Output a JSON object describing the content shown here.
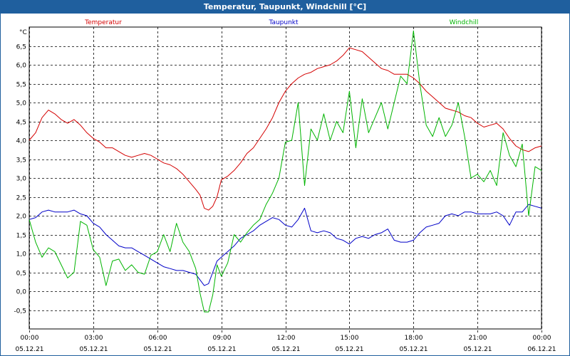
{
  "window": {
    "title": "Temperatur, Taupunkt, Windchill [°C]"
  },
  "colors": {
    "titlebar": "#1f5f9e",
    "grid": "#000000",
    "temperature": "#d40000",
    "dewpoint": "#0000c8",
    "windchill": "#00b400"
  },
  "chart_data": {
    "type": "line",
    "title": "Temperatur, Taupunkt, Windchill [°C]",
    "ylabel": "°C",
    "ylim": [
      -1.0,
      7.0
    ],
    "xlim": [
      0,
      24
    ],
    "grid": true,
    "legend_position": "top",
    "yticks": [
      -0.5,
      0.0,
      0.5,
      1.0,
      1.5,
      2.0,
      2.5,
      3.0,
      3.5,
      4.0,
      4.5,
      5.0,
      5.5,
      6.0,
      6.5
    ],
    "ytick_labels": [
      "-0,5",
      "0,0",
      "0,5",
      "1,0",
      "1,5",
      "2,0",
      "2,5",
      "3,0",
      "3,5",
      "4,0",
      "4,5",
      "5,0",
      "5,5",
      "6,0",
      "6,5"
    ],
    "xticks": [
      {
        "hour": 0,
        "time": "00:00",
        "date": "05.12.21"
      },
      {
        "hour": 3,
        "time": "03:00",
        "date": "05.12.21"
      },
      {
        "hour": 6,
        "time": "06:00",
        "date": "05.12.21"
      },
      {
        "hour": 9,
        "time": "09:00",
        "date": "05.12.21"
      },
      {
        "hour": 12,
        "time": "12:00",
        "date": "05.12.21"
      },
      {
        "hour": 15,
        "time": "15:00",
        "date": "05.12.21"
      },
      {
        "hour": 18,
        "time": "18:00",
        "date": "05.12.21"
      },
      {
        "hour": 21,
        "time": "21:00",
        "date": "05.12.21"
      },
      {
        "hour": 24,
        "time": "00:00",
        "date": "06.12.21"
      }
    ],
    "series": [
      {
        "name": "Temperatur",
        "color": "#d40000",
        "x": [
          0,
          0.3,
          0.6,
          0.9,
          1.2,
          1.5,
          1.8,
          2.1,
          2.4,
          2.7,
          3.0,
          3.3,
          3.6,
          3.9,
          4.2,
          4.5,
          4.8,
          5.1,
          5.4,
          5.7,
          6.0,
          6.3,
          6.6,
          6.9,
          7.2,
          7.5,
          7.8,
          8.0,
          8.2,
          8.4,
          8.6,
          8.8,
          9.0,
          9.3,
          9.6,
          9.9,
          10.2,
          10.5,
          10.8,
          11.1,
          11.4,
          11.7,
          12.0,
          12.3,
          12.6,
          12.9,
          13.2,
          13.5,
          13.8,
          14.1,
          14.4,
          14.7,
          15.0,
          15.3,
          15.6,
          15.9,
          16.2,
          16.5,
          16.8,
          17.1,
          17.4,
          17.7,
          18.0,
          18.3,
          18.6,
          18.9,
          19.2,
          19.5,
          19.8,
          20.1,
          20.4,
          20.7,
          21.0,
          21.3,
          21.6,
          21.9,
          22.2,
          22.5,
          22.8,
          23.1,
          23.4,
          23.7,
          24.0
        ],
        "values": [
          4.0,
          4.2,
          4.6,
          4.8,
          4.7,
          4.55,
          4.45,
          4.55,
          4.4,
          4.2,
          4.05,
          3.95,
          3.8,
          3.8,
          3.7,
          3.6,
          3.55,
          3.6,
          3.65,
          3.6,
          3.5,
          3.4,
          3.35,
          3.25,
          3.1,
          2.9,
          2.7,
          2.55,
          2.2,
          2.15,
          2.25,
          2.5,
          2.95,
          3.05,
          3.2,
          3.4,
          3.65,
          3.8,
          4.05,
          4.3,
          4.6,
          5.0,
          5.3,
          5.5,
          5.65,
          5.75,
          5.8,
          5.9,
          5.95,
          6.0,
          6.1,
          6.25,
          6.45,
          6.4,
          6.35,
          6.2,
          6.05,
          5.9,
          5.85,
          5.75,
          5.75,
          5.75,
          5.65,
          5.5,
          5.3,
          5.15,
          5.0,
          4.85,
          4.8,
          4.75,
          4.65,
          4.6,
          4.45,
          4.35,
          4.4,
          4.45,
          4.3,
          4.05,
          3.85,
          3.75,
          3.7,
          3.8,
          3.85
        ]
      },
      {
        "name": "Taupunkt",
        "color": "#0000c8",
        "x": [
          0,
          0.3,
          0.6,
          0.9,
          1.2,
          1.5,
          1.8,
          2.1,
          2.4,
          2.7,
          3.0,
          3.3,
          3.6,
          3.9,
          4.2,
          4.5,
          4.8,
          5.1,
          5.4,
          5.7,
          6.0,
          6.3,
          6.6,
          6.9,
          7.2,
          7.5,
          7.8,
          8.0,
          8.2,
          8.4,
          8.6,
          8.8,
          9.0,
          9.3,
          9.6,
          9.9,
          10.2,
          10.5,
          10.8,
          11.1,
          11.4,
          11.7,
          12.0,
          12.3,
          12.6,
          12.9,
          13.2,
          13.5,
          13.8,
          14.1,
          14.4,
          14.7,
          15.0,
          15.3,
          15.6,
          15.9,
          16.2,
          16.5,
          16.8,
          17.1,
          17.4,
          17.7,
          18.0,
          18.3,
          18.6,
          18.9,
          19.2,
          19.5,
          19.8,
          20.1,
          20.4,
          20.7,
          21.0,
          21.3,
          21.6,
          21.9,
          22.2,
          22.5,
          22.8,
          23.1,
          23.4,
          23.7,
          24.0
        ],
        "values": [
          1.9,
          1.95,
          2.1,
          2.15,
          2.1,
          2.1,
          2.1,
          2.15,
          2.05,
          2.0,
          1.8,
          1.7,
          1.5,
          1.35,
          1.2,
          1.15,
          1.15,
          1.05,
          0.95,
          0.85,
          0.75,
          0.65,
          0.6,
          0.55,
          0.55,
          0.5,
          0.45,
          0.3,
          0.15,
          0.2,
          0.5,
          0.8,
          0.9,
          1.05,
          1.2,
          1.4,
          1.5,
          1.6,
          1.75,
          1.85,
          1.95,
          1.9,
          1.75,
          1.7,
          1.9,
          2.2,
          1.6,
          1.55,
          1.6,
          1.55,
          1.4,
          1.35,
          1.25,
          1.4,
          1.45,
          1.4,
          1.5,
          1.55,
          1.65,
          1.35,
          1.3,
          1.3,
          1.35,
          1.55,
          1.7,
          1.75,
          1.8,
          2.0,
          2.05,
          2.0,
          2.1,
          2.1,
          2.05,
          2.05,
          2.05,
          2.1,
          2.0,
          1.75,
          2.1,
          2.1,
          2.3,
          2.25,
          2.2
        ]
      },
      {
        "name": "Windchill",
        "color": "#00b400",
        "x": [
          0,
          0.3,
          0.6,
          0.9,
          1.2,
          1.5,
          1.8,
          2.1,
          2.4,
          2.7,
          3.0,
          3.3,
          3.6,
          3.9,
          4.2,
          4.5,
          4.8,
          5.1,
          5.4,
          5.7,
          6.0,
          6.3,
          6.6,
          6.9,
          7.2,
          7.5,
          7.8,
          8.0,
          8.2,
          8.4,
          8.6,
          8.8,
          9.0,
          9.3,
          9.6,
          9.9,
          10.2,
          10.5,
          10.8,
          11.1,
          11.4,
          11.7,
          12.0,
          12.3,
          12.6,
          12.9,
          13.2,
          13.5,
          13.8,
          14.1,
          14.4,
          14.7,
          15.0,
          15.3,
          15.6,
          15.9,
          16.2,
          16.5,
          16.8,
          17.1,
          17.4,
          17.7,
          18.0,
          18.3,
          18.6,
          18.9,
          19.2,
          19.5,
          19.8,
          20.1,
          20.4,
          20.7,
          21.0,
          21.3,
          21.6,
          21.9,
          22.2,
          22.5,
          22.8,
          23.1,
          23.4,
          23.7,
          24.0
        ],
        "values": [
          1.9,
          1.3,
          0.9,
          1.15,
          1.05,
          0.7,
          0.35,
          0.5,
          1.85,
          1.75,
          1.1,
          0.9,
          0.15,
          0.8,
          0.85,
          0.55,
          0.7,
          0.5,
          0.45,
          0.95,
          1.05,
          1.5,
          1.05,
          1.8,
          1.3,
          1.05,
          0.6,
          -0.05,
          -0.55,
          -0.55,
          -0.1,
          0.7,
          0.4,
          0.75,
          1.5,
          1.3,
          1.55,
          1.75,
          1.9,
          2.3,
          2.6,
          3.0,
          3.95,
          4.0,
          5.0,
          2.8,
          4.3,
          4.0,
          4.7,
          4.0,
          4.5,
          4.2,
          5.3,
          3.8,
          5.1,
          4.2,
          4.6,
          5.0,
          4.3,
          5.0,
          5.7,
          5.5,
          6.9,
          5.5,
          4.4,
          4.1,
          4.6,
          4.1,
          4.4,
          5.0,
          4.1,
          3.0,
          3.1,
          2.9,
          3.2,
          2.8,
          4.2,
          3.6,
          3.3,
          3.9,
          2.0,
          3.3,
          3.2
        ]
      }
    ]
  }
}
